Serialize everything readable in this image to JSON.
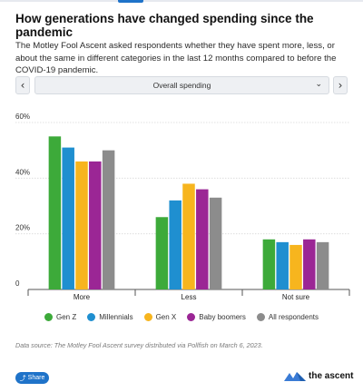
{
  "title": "How generations have changed spending since the pandemic",
  "subtitle": "The Motley Fool Ascent asked respondents whether they have spent more, less, or about the same in different categories in the last 12 months compared to before the COVID-19 pandemic.",
  "nav": {
    "prev_icon": "‹",
    "next_icon": "›"
  },
  "selector": {
    "value": "Overall spending",
    "chevron": "⌄"
  },
  "chart_data": {
    "type": "bar",
    "categories": [
      "More",
      "Less",
      "Not sure"
    ],
    "series": [
      {
        "name": "Gen Z",
        "color": "#3daa3a",
        "values": [
          55,
          26,
          18
        ]
      },
      {
        "name": "Millennials",
        "color": "#1f8fd0",
        "values": [
          51,
          32,
          17
        ]
      },
      {
        "name": "Gen X",
        "color": "#f7b51e",
        "values": [
          46,
          38,
          16
        ]
      },
      {
        "name": "Baby boomers",
        "color": "#9b2695",
        "values": [
          46,
          36,
          18
        ]
      },
      {
        "name": "All respondents",
        "color": "#8c8c8c",
        "values": [
          50,
          33,
          17
        ]
      }
    ],
    "y_ticks": [
      {
        "value": 0,
        "label": "0"
      },
      {
        "value": 20,
        "label": "20%"
      },
      {
        "value": 40,
        "label": "40%"
      },
      {
        "value": 60,
        "label": "60%"
      }
    ],
    "ylim": [
      0,
      60
    ],
    "grid": true,
    "legend_position": "bottom"
  },
  "source": "Data source: The Motley Fool Ascent survey distributed via Pollfish on March 6, 2023.",
  "share": {
    "label": "Share",
    "icon": "share-icon"
  },
  "brand": {
    "name": "the ascent",
    "logo": "ascent-logo"
  }
}
